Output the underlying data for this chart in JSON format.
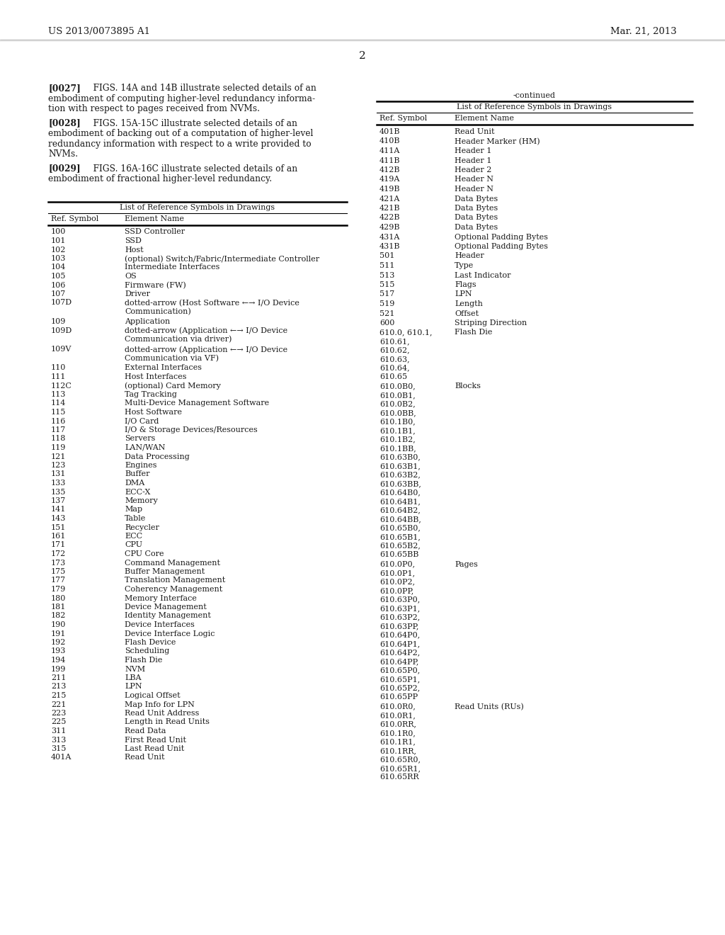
{
  "page_number": "2",
  "patent_number": "US 2013/0073895 A1",
  "patent_date": "Mar. 21, 2013",
  "background_color": "#ffffff",
  "paragraphs": [
    {
      "tag": "[0027]",
      "lines": [
        "FIGS. 14A and 14B illustrate selected details of an",
        "embodiment of computing higher-level redundancy informa-",
        "tion with respect to pages received from NVMs."
      ]
    },
    {
      "tag": "[0028]",
      "lines": [
        "FIGS. 15A-15C illustrate selected details of an",
        "embodiment of backing out of a computation of higher-level",
        "redundancy information with respect to a write provided to",
        "NVMs."
      ]
    },
    {
      "tag": "[0029]",
      "lines": [
        "FIGS. 16A-16C illustrate selected details of an",
        "embodiment of fractional higher-level redundancy."
      ]
    }
  ],
  "left_table_title": "List of Reference Symbols in Drawings",
  "left_table_headers": [
    "Ref. Symbol",
    "Element Name"
  ],
  "left_table_rows": [
    [
      "100",
      "SSD Controller"
    ],
    [
      "101",
      "SSD"
    ],
    [
      "102",
      "Host"
    ],
    [
      "103",
      "(optional) Switch/Fabric/Intermediate Controller"
    ],
    [
      "104",
      "Intermediate Interfaces"
    ],
    [
      "105",
      "OS"
    ],
    [
      "106",
      "Firmware (FW)"
    ],
    [
      "107",
      "Driver"
    ],
    [
      "107D",
      "dotted-arrow (Host Software ←→ I/O Device\nCommunication)"
    ],
    [
      "109",
      "Application"
    ],
    [
      "109D",
      "dotted-arrow (Application ←→ I/O Device\nCommunication via driver)"
    ],
    [
      "109V",
      "dotted-arrow (Application ←→ I/O Device\nCommunication via VF)"
    ],
    [
      "110",
      "External Interfaces"
    ],
    [
      "111",
      "Host Interfaces"
    ],
    [
      "112C",
      "(optional) Card Memory"
    ],
    [
      "113",
      "Tag Tracking"
    ],
    [
      "114",
      "Multi-Device Management Software"
    ],
    [
      "115",
      "Host Software"
    ],
    [
      "116",
      "I/O Card"
    ],
    [
      "117",
      "I/O & Storage Devices/Resources"
    ],
    [
      "118",
      "Servers"
    ],
    [
      "119",
      "LAN/WAN"
    ],
    [
      "121",
      "Data Processing"
    ],
    [
      "123",
      "Engines"
    ],
    [
      "131",
      "Buffer"
    ],
    [
      "133",
      "DMA"
    ],
    [
      "135",
      "ECC-X"
    ],
    [
      "137",
      "Memory"
    ],
    [
      "141",
      "Map"
    ],
    [
      "143",
      "Table"
    ],
    [
      "151",
      "Recycler"
    ],
    [
      "161",
      "ECC"
    ],
    [
      "171",
      "CPU"
    ],
    [
      "172",
      "CPU Core"
    ],
    [
      "173",
      "Command Management"
    ],
    [
      "175",
      "Buffer Management"
    ],
    [
      "177",
      "Translation Management"
    ],
    [
      "179",
      "Coherency Management"
    ],
    [
      "180",
      "Memory Interface"
    ],
    [
      "181",
      "Device Management"
    ],
    [
      "182",
      "Identity Management"
    ],
    [
      "190",
      "Device Interfaces"
    ],
    [
      "191",
      "Device Interface Logic"
    ],
    [
      "192",
      "Flash Device"
    ],
    [
      "193",
      "Scheduling"
    ],
    [
      "194",
      "Flash Die"
    ],
    [
      "199",
      "NVM"
    ],
    [
      "211",
      "LBA"
    ],
    [
      "213",
      "LPN"
    ],
    [
      "215",
      "Logical Offset"
    ],
    [
      "221",
      "Map Info for LPN"
    ],
    [
      "223",
      "Read Unit Address"
    ],
    [
      "225",
      "Length in Read Units"
    ],
    [
      "311",
      "Read Data"
    ],
    [
      "313",
      "First Read Unit"
    ],
    [
      "315",
      "Last Read Unit"
    ],
    [
      "401A",
      "Read Unit"
    ]
  ],
  "right_table_title": "-continued",
  "right_table_subtitle": "List of Reference Symbols in Drawings",
  "right_table_headers": [
    "Ref. Symbol",
    "Element Name"
  ],
  "right_table_rows": [
    [
      "401B",
      "Read Unit"
    ],
    [
      "410B",
      "Header Marker (HM)"
    ],
    [
      "411A",
      "Header 1"
    ],
    [
      "411B",
      "Header 1"
    ],
    [
      "412B",
      "Header 2"
    ],
    [
      "419A",
      "Header N"
    ],
    [
      "419B",
      "Header N"
    ],
    [
      "421A",
      "Data Bytes"
    ],
    [
      "421B",
      "Data Bytes"
    ],
    [
      "422B",
      "Data Bytes"
    ],
    [
      "429B",
      "Data Bytes"
    ],
    [
      "431A",
      "Optional Padding Bytes"
    ],
    [
      "431B",
      "Optional Padding Bytes"
    ],
    [
      "501",
      "Header"
    ],
    [
      "511",
      "Type"
    ],
    [
      "513",
      "Last Indicator"
    ],
    [
      "515",
      "Flags"
    ],
    [
      "517",
      "LPN"
    ],
    [
      "519",
      "Length"
    ],
    [
      "521",
      "Offset"
    ],
    [
      "600",
      "Striping Direction"
    ],
    [
      "610.0, 610.1,\n610.61,\n610.62,\n610.63,\n610.64,\n610.65",
      "Flash Die"
    ],
    [
      "610.0B0,\n610.0B1,\n610.0B2,\n610.0BB,\n610.1B0,\n610.1B1,\n610.1B2,\n610.1BB,\n610.63B0,\n610.63B1,\n610.63B2,\n610.63BB,\n610.64B0,\n610.64B1,\n610.64B2,\n610.64BB,\n610.65B0,\n610.65B1,\n610.65B2,\n610.65BB",
      "Blocks"
    ],
    [
      "610.0P0,\n610.0P1,\n610.0P2,\n610.0PP,\n610.63P0,\n610.63P1,\n610.63P2,\n610.63PP,\n610.64P0,\n610.64P1,\n610.64P2,\n610.64PP,\n610.65P0,\n610.65P1,\n610.65P2,\n610.65PP",
      "Pages"
    ],
    [
      "610.0R0,\n610.0R1,\n610.0RR,\n610.1R0,\n610.1R1,\n610.1RR,\n610.65R0,\n610.65R1,\n610.65RR",
      "Read Units (RUs)"
    ]
  ]
}
